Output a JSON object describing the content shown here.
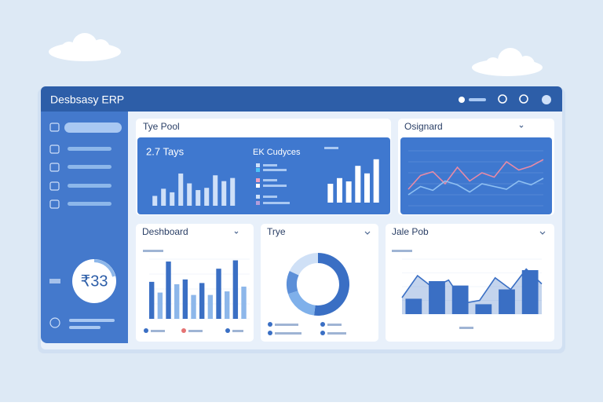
{
  "header": {
    "title": "Desbsasy ERP"
  },
  "sidebar": {
    "badge": "₹33"
  },
  "cards": [
    {
      "title": "Tye Pool",
      "stat": "2.7 Tays",
      "legend_title": "EK Cudyces",
      "chart": {
        "type": "bar",
        "ylim": [
          0,
          100
        ],
        "color": "#cfe0f8",
        "values": [
          22,
          38,
          30,
          72,
          50,
          35,
          40,
          68,
          55,
          62
        ]
      },
      "chart2": {
        "type": "bar",
        "ylim": [
          0,
          100
        ],
        "color": "#ffffff",
        "values": [
          40,
          52,
          45,
          78,
          62,
          92
        ]
      }
    },
    {
      "title": "Osignard",
      "chart": {
        "type": "line",
        "ylim": [
          0,
          100
        ],
        "series": [
          {
            "color": "#e88aa6",
            "values": [
              30,
              55,
              62,
              40,
              70,
              45,
              60,
              52,
              80,
              65,
              72,
              84
            ]
          },
          {
            "color": "#8fc0f2",
            "values": [
              20,
              35,
              28,
              45,
              38,
              25,
              40,
              35,
              30,
              45,
              38,
              50
            ]
          }
        ]
      }
    },
    {
      "title": "Deshboard",
      "chart": {
        "type": "bar",
        "ylim": [
          0,
          100
        ],
        "series": [
          {
            "color": "#3a6fc4",
            "values": [
              62,
              96,
              66,
              60,
              84,
              98
            ]
          },
          {
            "color": "#8db7ea",
            "values": [
              44,
              58,
              40,
              40,
              46,
              54
            ]
          }
        ]
      }
    },
    {
      "title": "Trye",
      "chart": {
        "type": "pie",
        "colors": [
          "#3a6fc4",
          "#7fb0ea",
          "#5c8fd8",
          "#cfe0f6"
        ],
        "values": [
          52,
          18,
          12,
          18
        ]
      }
    },
    {
      "title": "Jale Pob",
      "chart": {
        "type": "bar",
        "ylim": [
          0,
          100
        ],
        "color": "#3a6fc4",
        "values": [
          28,
          60,
          52,
          18,
          45,
          80
        ],
        "series": [
          {
            "color": "#3a6fc4",
            "values": [
              30,
              70,
              48,
              62,
              20,
              25,
              66,
              45,
              82,
              55
            ]
          }
        ]
      }
    }
  ]
}
